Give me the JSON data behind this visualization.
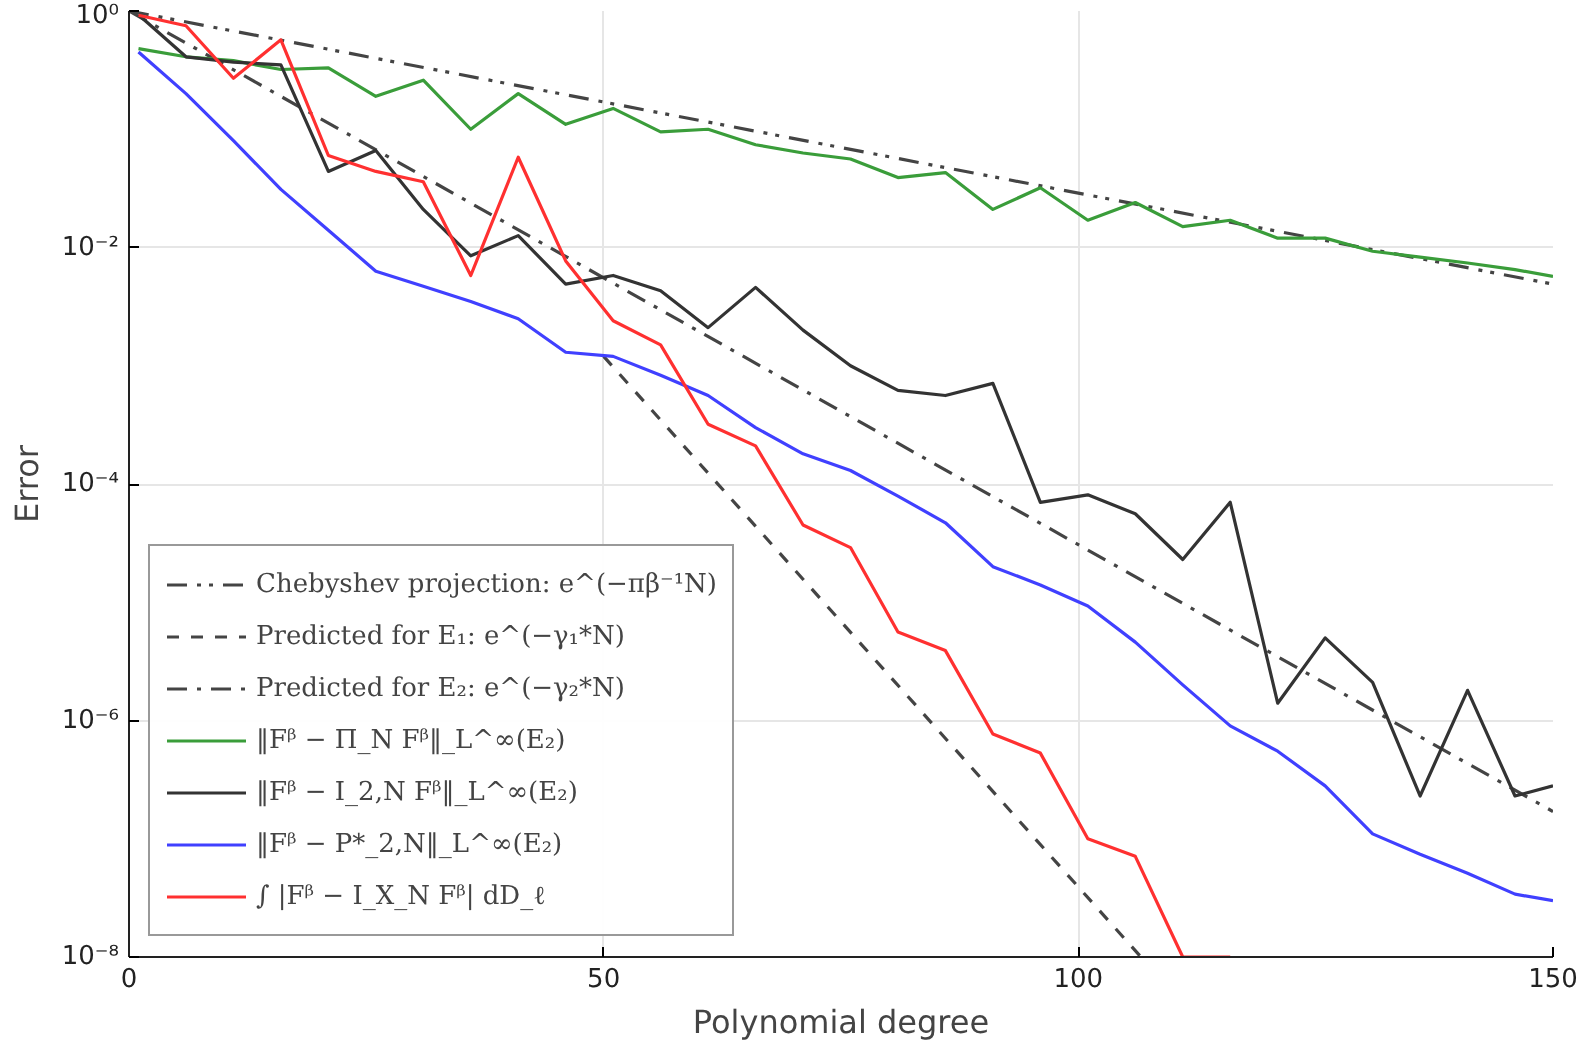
{
  "chart_data": {
    "type": "line",
    "xlabel": "Polynomial degree",
    "ylabel": "Error",
    "log": "y",
    "xlim": [
      0,
      150
    ],
    "xticks": [
      0,
      50,
      100,
      150
    ],
    "ylim": [
      1e-08,
      1
    ],
    "yticks": [
      {
        "value": 1e-08,
        "label": "10⁻⁸"
      },
      {
        "value": 1e-06,
        "label": "10⁻⁶"
      },
      {
        "value": 0.0001,
        "label": "10⁻⁴"
      },
      {
        "value": 0.01,
        "label": "10⁻²"
      },
      {
        "value": 1,
        "label": "10⁰"
      }
    ],
    "grid": true,
    "legend": "bottom left",
    "x": [
      1,
      6,
      11,
      16,
      21,
      26,
      31,
      36,
      41,
      46,
      51,
      56,
      61,
      66,
      71,
      76,
      81,
      86,
      91,
      96,
      101,
      106,
      111,
      116,
      121,
      126,
      131,
      136,
      141,
      146,
      150
    ],
    "series": [
      {
        "name": "Chebyshev projection: e^(−πβ⁻¹N)",
        "color": "#444444",
        "line_style": "dashdotdot",
        "x": [
          0,
          150
        ],
        "values": [
          1,
          0.0049
        ]
      },
      {
        "name": "Predicted for E₁: e^(−γ₁*N)",
        "color": "#444444",
        "line_style": "dashed",
        "x": [
          50,
          106.6
        ],
        "values": [
          0.0012,
          1e-08
        ]
      },
      {
        "name": "Predicted for E₂: e^(−γ₂*N)",
        "color": "#444444",
        "line_style": "dashdot",
        "x": [
          0,
          150
        ],
        "values": [
          1,
          1.7e-07
        ]
      },
      {
        "name": "‖Fᵝ − Π_N Fᵝ‖_L^∞(E₂)",
        "color": "#3a9d3a",
        "values": [
          0.48,
          0.41,
          0.38,
          0.32,
          0.33,
          0.19,
          0.26,
          0.1,
          0.2,
          0.11,
          0.15,
          0.095,
          0.1,
          0.074,
          0.063,
          0.056,
          0.039,
          0.043,
          0.021,
          0.032,
          0.017,
          0.024,
          0.015,
          0.017,
          0.012,
          0.012,
          0.0093,
          0.0083,
          0.0074,
          0.0065,
          0.0057
        ]
      },
      {
        "name": "‖Fᵝ − I_2,N Fᵝ‖_L^∞(E₂)",
        "color": "#333333",
        "values": [
          0.93,
          0.41,
          0.37,
          0.35,
          0.044,
          0.066,
          0.021,
          0.0085,
          0.0126,
          0.0049,
          0.0058,
          0.0043,
          0.0021,
          0.0046,
          0.002,
          0.001,
          0.00062,
          0.00056,
          0.00071,
          7e-05,
          8.1e-05,
          5.6e-05,
          2.3e-05,
          7e-05,
          1.4e-06,
          5e-06,
          2.1e-06,
          2.3e-07,
          1.8e-06,
          2.3e-07,
          2.8e-07
        ]
      },
      {
        "name": "‖Fᵝ − P*_2,N‖_L^∞(E₂)",
        "color": "#4040ff",
        "values": [
          0.45,
          0.2,
          0.08,
          0.031,
          0.014,
          0.0063,
          0.0047,
          0.0035,
          0.0025,
          0.0013,
          0.0012,
          0.00083,
          0.00056,
          0.0003,
          0.00018,
          0.00013,
          7.9e-05,
          4.7e-05,
          2e-05,
          1.4e-05,
          9.3e-06,
          4.6e-06,
          2e-06,
          9e-07,
          5.5e-07,
          2.8e-07,
          1.1e-07,
          7.4e-08,
          5.1e-08,
          3.4e-08,
          3e-08
        ]
      },
      {
        "name": "∫ |Fᵝ − I_X_N Fᵝ| dD_ℓ",
        "color": "#ff3030",
        "values": [
          0.92,
          0.75,
          0.27,
          0.57,
          0.06,
          0.044,
          0.036,
          0.0058,
          0.058,
          0.0077,
          0.0024,
          0.0015,
          0.00032,
          0.00021,
          4.5e-05,
          2.9e-05,
          5.6e-06,
          3.9e-06,
          7.7e-07,
          5.3e-07,
          1e-07,
          7.1e-08,
          1e-08,
          1e-08,
          null,
          null,
          null,
          null,
          null,
          null,
          null
        ]
      }
    ]
  }
}
